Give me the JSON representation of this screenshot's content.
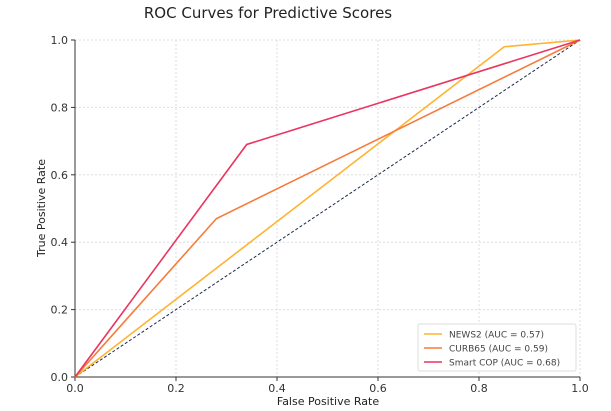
{
  "chart_data": {
    "type": "line",
    "title": "ROC Curves for Predictive Scores",
    "xlabel": "False Positive Rate",
    "ylabel": "True Positive Rate",
    "xlim": [
      0,
      1
    ],
    "ylim": [
      0,
      1
    ],
    "xticks": [
      "0.0",
      "0.2",
      "0.4",
      "0.6",
      "0.8",
      "1.0"
    ],
    "yticks": [
      "0.0",
      "0.2",
      "0.4",
      "0.6",
      "0.8",
      "1.0"
    ],
    "grid": true,
    "legend_position": "bottom-right",
    "series": [
      {
        "name": "NEWS2 (AUC = 0.57)",
        "color": "#ffb330",
        "x": [
          0,
          0.85,
          1
        ],
        "y": [
          0,
          0.98,
          1
        ]
      },
      {
        "name": "CURB65 (AUC = 0.59)",
        "color": "#f67c3c",
        "x": [
          0,
          0.28,
          1
        ],
        "y": [
          0,
          0.47,
          1
        ]
      },
      {
        "name": "Smart COP (AUC = 0.68)",
        "color": "#ea3560",
        "x": [
          0,
          0.34,
          1
        ],
        "y": [
          0,
          0.69,
          1
        ]
      }
    ],
    "reference_line": {
      "x": [
        0,
        1
      ],
      "y": [
        0,
        1
      ],
      "color": "#1a2a4a",
      "style": "dashed"
    }
  }
}
